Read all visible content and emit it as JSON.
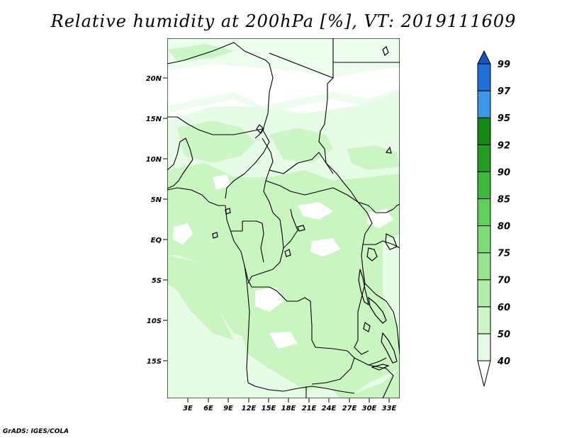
{
  "title": "Relative humidity at 200hPa [%], VT: 2019111609",
  "credit": "GrADS: IGES/COLA",
  "map": {
    "lat_ticks": [
      "20N",
      "15N",
      "10N",
      "5N",
      "EQ",
      "5S",
      "10S",
      "15S"
    ],
    "lon_ticks": [
      "3E",
      "6E",
      "9E",
      "12E",
      "15E",
      "18E",
      "21E",
      "24E",
      "27E",
      "30E",
      "33E"
    ],
    "fill_color_40_50": "#e6fce6",
    "fill_color_50_60": "#c8f5c0"
  },
  "colorbar": {
    "levels": [
      "40",
      "50",
      "60",
      "70",
      "75",
      "80",
      "85",
      "90",
      "92",
      "95",
      "97",
      "99"
    ],
    "colors": [
      "#ffffff",
      "#e6fbe4",
      "#cdf5c5",
      "#b0edaa",
      "#96e58e",
      "#7ddc75",
      "#5fd05a",
      "#3cb83a",
      "#249d22",
      "#138a13",
      "#3c97eb",
      "#1e6fd6",
      "#1656c2"
    ]
  }
}
